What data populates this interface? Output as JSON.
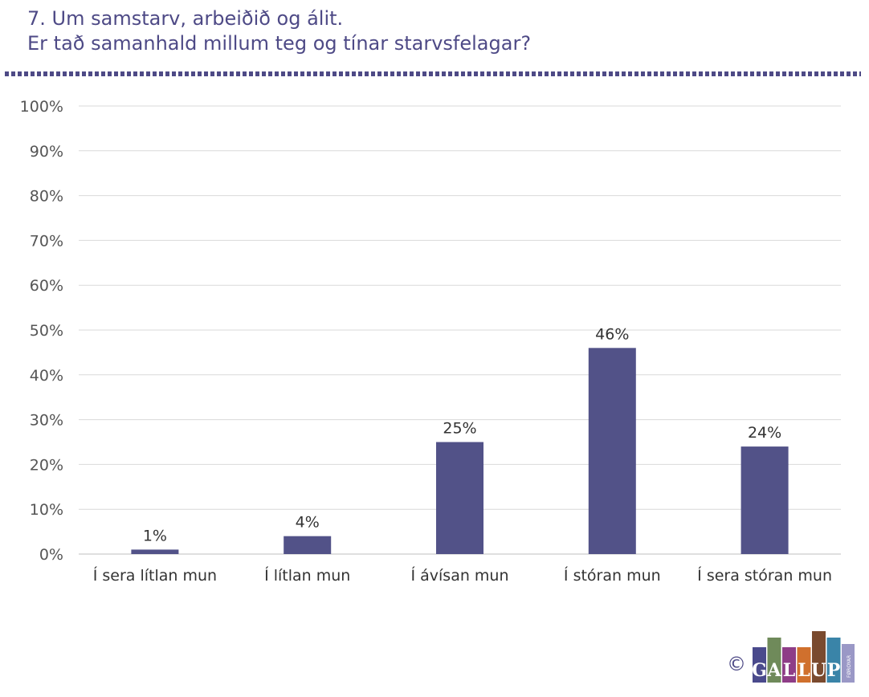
{
  "title": {
    "line1": "7. Um samstarv, arbeiðið og álit.",
    "line2": "Er tað samanhald millum teg og tínar starvsfelagar?"
  },
  "chart_data": {
    "type": "bar",
    "categories": [
      "Í sera lítlan mun",
      "Í lítlan mun",
      "Í ávísan mun",
      "Í stóran mun",
      "Í sera stóran mun"
    ],
    "values": [
      1,
      4,
      25,
      46,
      24
    ],
    "value_labels": [
      "1%",
      "4%",
      "25%",
      "46%",
      "24%"
    ],
    "ylim": [
      0,
      100
    ],
    "yticks": [
      "0%",
      "10%",
      "20%",
      "30%",
      "40%",
      "50%",
      "60%",
      "70%",
      "80%",
      "90%",
      "100%"
    ],
    "grid": true,
    "bar_color": "#525288",
    "label_color": "#333333"
  },
  "logo": {
    "copyright": "©",
    "letters": [
      "G",
      "A",
      "L",
      "L",
      "U",
      "P"
    ],
    "colors": [
      "#4a4a8c",
      "#6f8a5a",
      "#8e3d87",
      "#d0702d",
      "#7a4a2e",
      "#3a84a8"
    ],
    "tail_color": "#9a98c6",
    "sub": "FØROYAR"
  }
}
